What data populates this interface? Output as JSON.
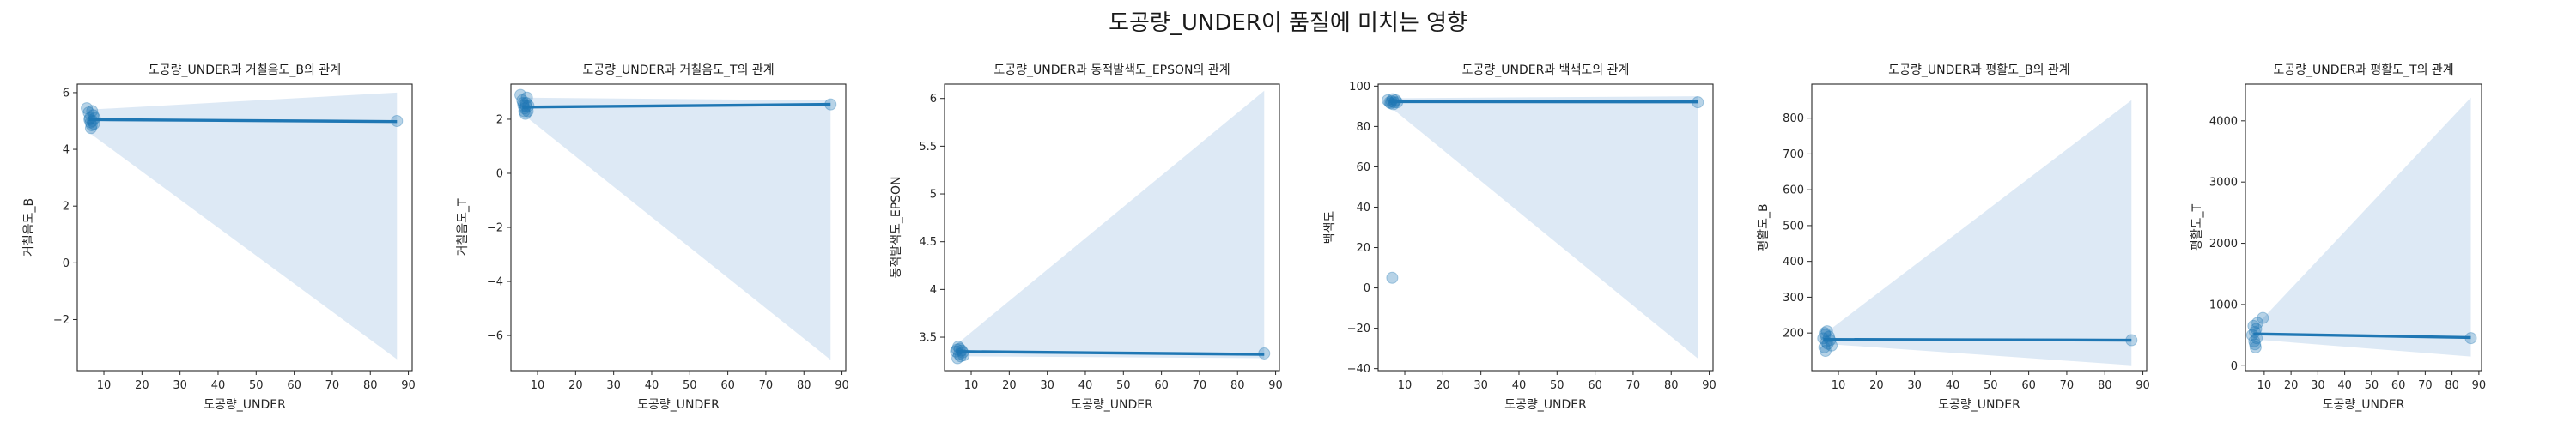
{
  "suptitle": "도공량_UNDER이 품질에 미치는 영향",
  "colors": {
    "point": "#1f77b4",
    "line": "#1f77b4",
    "band": "#c6dbef",
    "axis": "#262626"
  },
  "chart_data": [
    {
      "type": "scatter",
      "title": "도공량_UNDER과 거칠음도_B의 관계",
      "xlabel": "도공량_UNDER",
      "ylabel": "거칠음도_B",
      "xlim": [
        3,
        91
      ],
      "ylim": [
        -3.8,
        6.3
      ],
      "xticks": [
        10,
        20,
        30,
        40,
        50,
        60,
        70,
        80,
        90
      ],
      "yticks": [
        -2,
        0,
        2,
        4,
        6
      ],
      "points": [
        [
          5.5,
          5.45
        ],
        [
          6.0,
          5.3
        ],
        [
          6.3,
          5.1
        ],
        [
          6.5,
          4.95
        ],
        [
          6.8,
          4.85
        ],
        [
          7.0,
          5.0
        ],
        [
          7.2,
          5.2
        ],
        [
          6.6,
          4.75
        ],
        [
          6.9,
          5.35
        ],
        [
          7.4,
          4.9
        ],
        [
          6.2,
          5.05
        ],
        [
          7.6,
          5.1
        ],
        [
          87,
          5.0
        ]
      ],
      "fit": {
        "start": [
          6,
          5.05
        ],
        "end": [
          87,
          4.98
        ]
      },
      "ci": {
        "at_start": [
          4.6,
          5.4
        ],
        "at_end": [
          -3.4,
          6.0
        ]
      }
    },
    {
      "type": "scatter",
      "title": "도공량_UNDER과 거칠음도_T의 관계",
      "xlabel": "도공량_UNDER",
      "ylabel": "거칠음도_T",
      "xlim": [
        3,
        91
      ],
      "ylim": [
        -7.3,
        3.3
      ],
      "xticks": [
        10,
        20,
        30,
        40,
        50,
        60,
        70,
        80,
        90
      ],
      "yticks": [
        -6,
        -4,
        -2,
        0,
        2
      ],
      "points": [
        [
          5.5,
          2.9
        ],
        [
          6.0,
          2.7
        ],
        [
          6.3,
          2.5
        ],
        [
          6.5,
          2.3
        ],
        [
          6.8,
          2.2
        ],
        [
          7.0,
          2.6
        ],
        [
          7.2,
          2.8
        ],
        [
          6.6,
          2.4
        ],
        [
          6.9,
          2.5
        ],
        [
          7.4,
          2.3
        ],
        [
          6.2,
          2.6
        ],
        [
          7.6,
          2.5
        ],
        [
          87,
          2.55
        ]
      ],
      "fit": {
        "start": [
          6,
          2.45
        ],
        "end": [
          87,
          2.55
        ]
      },
      "ci": {
        "at_start": [
          2.2,
          2.8
        ],
        "at_end": [
          -6.9,
          2.7
        ]
      }
    },
    {
      "type": "scatter",
      "title": "도공량_UNDER과 동적발색도_EPSON의 관계",
      "xlabel": "도공량_UNDER",
      "ylabel": "동적발색도_EPSON",
      "xlim": [
        3,
        91
      ],
      "ylim": [
        3.15,
        6.15
      ],
      "xticks": [
        10,
        20,
        30,
        40,
        50,
        60,
        70,
        80,
        90
      ],
      "yticks": [
        3.5,
        4.0,
        4.5,
        5.0,
        5.5,
        6.0
      ],
      "points": [
        [
          6.0,
          3.35
        ],
        [
          6.4,
          3.28
        ],
        [
          6.8,
          3.32
        ],
        [
          7.0,
          3.38
        ],
        [
          7.2,
          3.3
        ],
        [
          7.5,
          3.36
        ],
        [
          6.6,
          3.4
        ],
        [
          7.8,
          3.34
        ],
        [
          8.0,
          3.31
        ],
        [
          6.3,
          3.37
        ],
        [
          87,
          3.33
        ]
      ],
      "fit": {
        "start": [
          6,
          3.35
        ],
        "end": [
          87,
          3.32
        ]
      },
      "ci": {
        "at_start": [
          3.3,
          3.42
        ],
        "at_end": [
          3.28,
          6.08
        ]
      }
    },
    {
      "type": "scatter",
      "title": "도공량_UNDER과 백색도의 관계",
      "xlabel": "도공량_UNDER",
      "ylabel": "백색도",
      "xlim": [
        3,
        91
      ],
      "ylim": [
        -41,
        101
      ],
      "xticks": [
        10,
        20,
        30,
        40,
        50,
        60,
        70,
        80,
        90
      ],
      "yticks": [
        -40,
        -20,
        0,
        20,
        40,
        60,
        80,
        100
      ],
      "points": [
        [
          5.5,
          93
        ],
        [
          6.0,
          92
        ],
        [
          6.3,
          91.5
        ],
        [
          6.5,
          92.5
        ],
        [
          6.8,
          93.5
        ],
        [
          7.0,
          91
        ],
        [
          7.2,
          92
        ],
        [
          7.6,
          93
        ],
        [
          8.0,
          92
        ],
        [
          6.7,
          5
        ],
        [
          87,
          92
        ]
      ],
      "fit": {
        "start": [
          6,
          92.3
        ],
        "end": [
          87,
          92.2
        ]
      },
      "ci": {
        "at_start": [
          90,
          94
        ],
        "at_end": [
          -35,
          95
        ]
      }
    },
    {
      "type": "scatter",
      "title": "도공량_UNDER과 평활도_B의 관계",
      "xlabel": "도공량_UNDER",
      "ylabel": "평활도_B",
      "xlim": [
        3,
        91
      ],
      "ylim": [
        95,
        895
      ],
      "xticks": [
        10,
        20,
        30,
        40,
        50,
        60,
        70,
        80,
        90
      ],
      "yticks": [
        200,
        300,
        400,
        500,
        600,
        700,
        800
      ],
      "points": [
        [
          6.0,
          185
        ],
        [
          6.3,
          160
        ],
        [
          6.5,
          195
        ],
        [
          6.8,
          175
        ],
        [
          7.0,
          205
        ],
        [
          7.2,
          170
        ],
        [
          7.5,
          190
        ],
        [
          6.6,
          150
        ],
        [
          7.8,
          180
        ],
        [
          8.2,
          165
        ],
        [
          6.4,
          200
        ],
        [
          87,
          180
        ]
      ],
      "fit": {
        "start": [
          6,
          182
        ],
        "end": [
          87,
          180
        ]
      },
      "ci": {
        "at_start": [
          170,
          195
        ],
        "at_end": [
          110,
          850
        ]
      }
    },
    {
      "type": "scatter",
      "title": "도공량_UNDER과 평활도_T의 관계",
      "xlabel": "도공량_UNDER",
      "ylabel": "평활도_T",
      "xlim": [
        3,
        91
      ],
      "ylim": [
        -80,
        4600
      ],
      "xticks": [
        10,
        20,
        30,
        40,
        50,
        60,
        70,
        80,
        90
      ],
      "yticks": [
        0,
        1000,
        2000,
        3000,
        4000
      ],
      "points": [
        [
          5.5,
          500
        ],
        [
          6.0,
          650
        ],
        [
          6.3,
          400
        ],
        [
          6.5,
          550
        ],
        [
          6.8,
          300
        ],
        [
          7.0,
          600
        ],
        [
          7.2,
          450
        ],
        [
          7.5,
          700
        ],
        [
          9.5,
          780
        ],
        [
          6.6,
          350
        ],
        [
          87,
          450
        ]
      ],
      "fit": {
        "start": [
          6,
          520
        ],
        "end": [
          87,
          460
        ]
      },
      "ci": {
        "at_start": [
          430,
          610
        ],
        "at_end": [
          150,
          4380
        ]
      }
    }
  ]
}
